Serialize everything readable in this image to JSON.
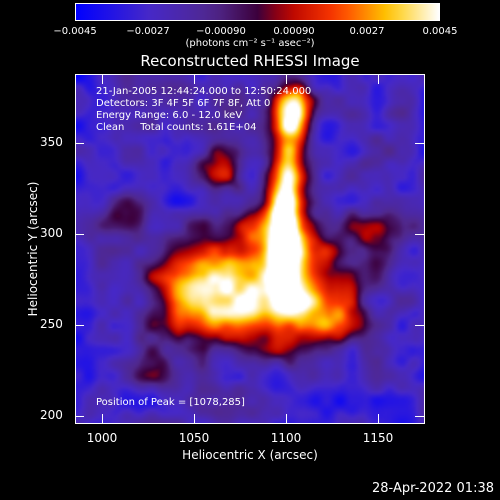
{
  "colorbar": {
    "ticks": [
      "−0.0045",
      "−0.0027",
      "−0.00090",
      "0.00090",
      "0.0027",
      "0.0045"
    ],
    "units": "(photons cm⁻² s⁻¹ asec⁻²)"
  },
  "title": "Reconstructed RHESSI Image",
  "info": {
    "time": "21-Jan-2005 12:44:24.000 to 12:50:24.000",
    "detectors": "Detectors: 3F 4F 5F 6F 7F 8F, Att 0",
    "energy": "Energy Range: 6.0 - 12.0 keV",
    "clean": "Clean     Total counts: 1.61E+04",
    "peak": "Position of Peak = [1078,285]"
  },
  "axes": {
    "xlabel": "Heliocentric X (arcsec)",
    "ylabel": "Heliocentric Y (arcsec)",
    "xticks": [
      "1000",
      "1050",
      "1100",
      "1150"
    ],
    "yticks": [
      "350",
      "300",
      "250",
      "200"
    ],
    "xrange": [
      985,
      1175
    ],
    "yrange": [
      195,
      385
    ]
  },
  "footer": {
    "date": "28-Apr-2022 01:38"
  },
  "colors": {
    "background": "#000000",
    "text": "#ffffff"
  }
}
